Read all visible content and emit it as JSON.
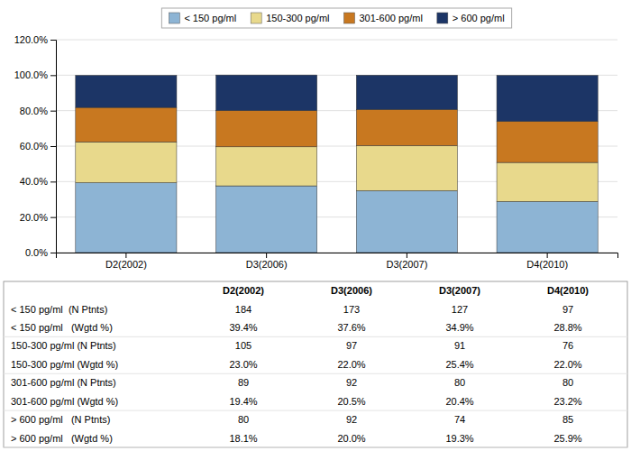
{
  "chart_data": {
    "type": "bar",
    "stacked": true,
    "categories": [
      "D2(2002)",
      "D3(2006)",
      "D3(2007)",
      "D4(2010)"
    ],
    "series": [
      {
        "name": "< 150 pg/ml",
        "color": "#8db4d4",
        "values": [
          39.4,
          37.6,
          34.9,
          28.8
        ]
      },
      {
        "name": "150-300 pg/ml",
        "color": "#e8d98c",
        "values": [
          23.0,
          22.0,
          25.4,
          22.0
        ]
      },
      {
        "name": "301-600 pg/ml",
        "color": "#c87820",
        "values": [
          19.4,
          20.5,
          20.4,
          23.2
        ]
      },
      {
        "name": "> 600 pg/ml",
        "color": "#1c3566",
        "values": [
          18.1,
          20.0,
          19.3,
          25.9
        ]
      }
    ],
    "ylim": [
      0,
      120
    ],
    "yticks": [
      {
        "value": 0,
        "label": "0.0%"
      },
      {
        "value": 20,
        "label": "20.0%"
      },
      {
        "value": 40,
        "label": "40.0%"
      },
      {
        "value": 60,
        "label": "60.0%"
      },
      {
        "value": 80,
        "label": "80.0%"
      },
      {
        "value": 100,
        "label": "100.0%"
      },
      {
        "value": 120,
        "label": "120.0%"
      }
    ],
    "grid": true,
    "legend": "top",
    "table_rows": [
      [
        "< 150 pg/ml  (N Ptnts)",
        "184",
        "173",
        "127",
        "97"
      ],
      [
        "< 150 pg/ml   (Wgtd %)",
        "39.4%",
        "37.6%",
        "34.9%",
        "28.8%"
      ],
      [
        "150-300 pg/ml (N Ptnts)",
        "105",
        "97",
        "91",
        "76"
      ],
      [
        "150-300 pg/ml (Wgtd %)",
        "23.0%",
        "22.0%",
        "25.4%",
        "22.0%"
      ],
      [
        "301-600 pg/ml (N Ptnts)",
        "89",
        "92",
        "80",
        "80"
      ],
      [
        "301-600 pg/ml (Wgtd %)",
        "19.4%",
        "20.5%",
        "20.4%",
        "23.2%"
      ],
      [
        "> 600 pg/ml   (N Ptnts)",
        "80",
        "92",
        "74",
        "85"
      ],
      [
        "> 600 pg/ml   (Wgtd %)",
        "18.1%",
        "20.0%",
        "19.3%",
        "25.9%"
      ]
    ]
  }
}
